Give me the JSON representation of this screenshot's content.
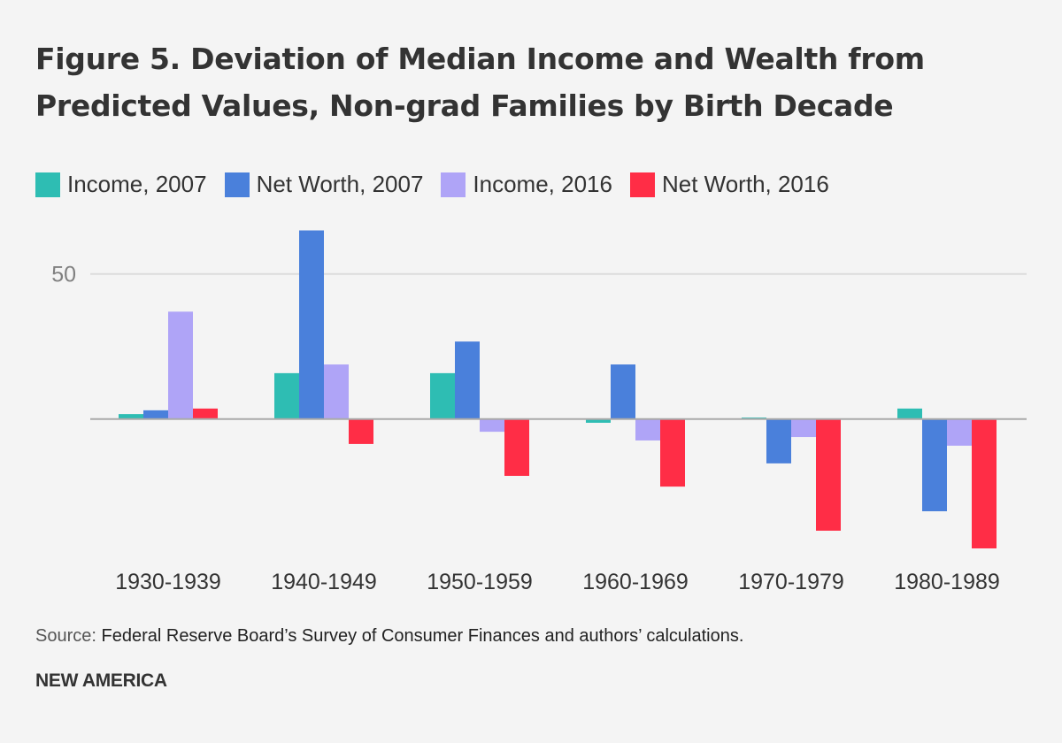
{
  "chart_data": {
    "type": "bar",
    "title": "Figure 5. Deviation of Median Income and Wealth from Predicted Values, Non-grad Families by Birth Decade",
    "xlabel": "",
    "ylabel": "",
    "categories": [
      "1930-1939",
      "1940-1949",
      "1950-1959",
      "1960-1969",
      "1970-1979",
      "1980-1989"
    ],
    "series": [
      {
        "name": "Income, 2007",
        "color": "#2ebdb3",
        "values": [
          1.7,
          15.8,
          15.8,
          -1.3,
          0.5,
          3.6
        ]
      },
      {
        "name": "Net Worth, 2007",
        "color": "#4a80db",
        "values": [
          3.0,
          65.0,
          26.7,
          18.8,
          -15.3,
          -31.8
        ]
      },
      {
        "name": "Income, 2016",
        "color": "#afa4f7",
        "values": [
          37.0,
          18.8,
          -4.4,
          -7.4,
          -6.2,
          -9.2
        ]
      },
      {
        "name": "Net Worth, 2016",
        "color": "#ff2d46",
        "values": [
          3.6,
          -8.6,
          -19.6,
          -23.3,
          -38.5,
          -44.6
        ]
      }
    ],
    "yticks": [
      50
    ],
    "ytick_labels": [
      "50"
    ],
    "ylim": [
      -50,
      70
    ],
    "grid": true,
    "legend_position": "top-left"
  },
  "source_label": "Source:",
  "source_text": "Federal Reserve Board’s Survey of Consumer Finances and authors’ calculations.",
  "brand": "NEW AMERICA"
}
